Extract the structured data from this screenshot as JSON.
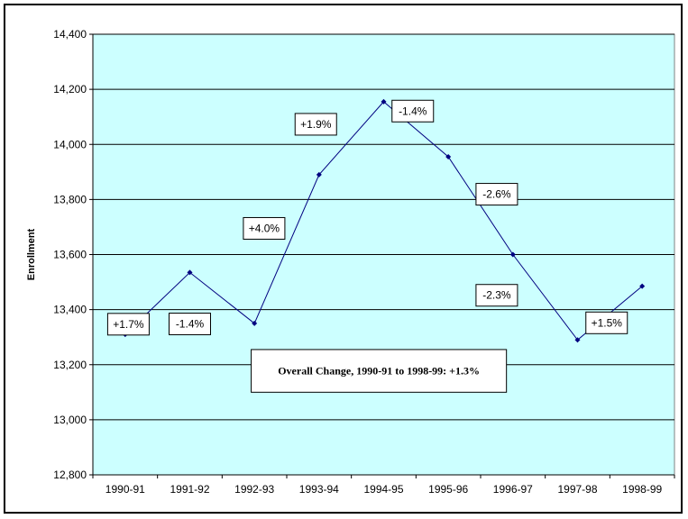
{
  "chart_data": {
    "type": "line",
    "title": "",
    "xlabel": "",
    "ylabel": "Enrollment",
    "ylim": [
      12800,
      14400
    ],
    "yticks": [
      "12,800",
      "13,000",
      "13,200",
      "13,400",
      "13,600",
      "13,800",
      "14,000",
      "14,200",
      "14,400"
    ],
    "ytick_values": [
      12800,
      13000,
      13200,
      13400,
      13600,
      13800,
      14000,
      14200,
      14400
    ],
    "categories": [
      "1990-91",
      "1991-92",
      "1992-93",
      "1993-94",
      "1994-95",
      "1995-96",
      "1996-97",
      "1997-98",
      "1998-99"
    ],
    "series": [
      {
        "values": [
          13310,
          13535,
          13350,
          13890,
          14155,
          13955,
          13600,
          13290,
          13485
        ]
      }
    ],
    "grid": true,
    "plot_background": "#ccffff",
    "line_color": "#000080",
    "annotations": [
      {
        "text": "+1.7%",
        "x": 0.05,
        "y": 13347
      },
      {
        "text": "-1.4%",
        "x": 1.0,
        "y": 13348
      },
      {
        "text": "+4.0%",
        "x": 2.15,
        "y": 13695
      },
      {
        "text": "+1.9%",
        "x": 2.95,
        "y": 14073
      },
      {
        "text": "-1.4%",
        "x": 4.45,
        "y": 14121
      },
      {
        "text": "-2.6%",
        "x": 5.75,
        "y": 13819
      },
      {
        "text": "-2.3%",
        "x": 5.75,
        "y": 13452
      },
      {
        "text": "+1.5%",
        "x": 7.45,
        "y": 13352
      }
    ],
    "note": "Overall Change, 1990-91 to 1998-99:  +1.3%"
  }
}
